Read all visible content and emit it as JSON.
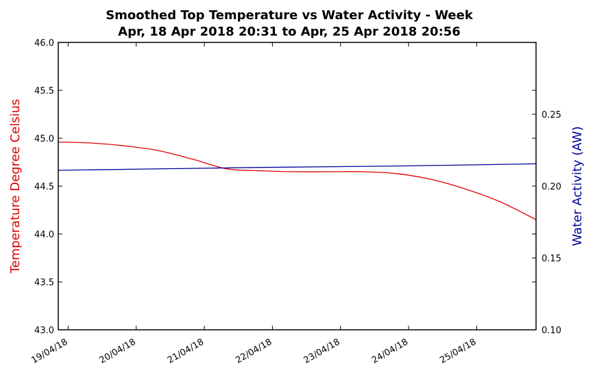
{
  "chart_data": {
    "type": "line",
    "title_line1": "Smoothed Top Temperature vs Water Activity - Week",
    "title_line2": "Apr, 18 Apr 2018 20:31 to Apr, 25 Apr 2018 20:56",
    "ylabel_left": "Temperature Degree Celsius",
    "ylabel_right": "Water Activity (AW)",
    "colors": {
      "temperature": "#dd0000",
      "water_activity": "#000099"
    },
    "ylim_left": [
      43.0,
      46.0
    ],
    "ylim_right": [
      0.1,
      0.3
    ],
    "xlim": [
      "2018-04-18 20:31",
      "2018-04-25 20:56"
    ],
    "yticks_left": [
      "43.0",
      "43.5",
      "44.0",
      "44.5",
      "45.0",
      "45.5",
      "46.0"
    ],
    "yticks_right": [
      "0.10",
      "0.15",
      "0.20",
      "0.25"
    ],
    "xticks": [
      {
        "date": "2018-04-19",
        "label": "19/04/18"
      },
      {
        "date": "2018-04-20",
        "label": "20/04/18"
      },
      {
        "date": "2018-04-21",
        "label": "21/04/18"
      },
      {
        "date": "2018-04-22",
        "label": "22/04/18"
      },
      {
        "date": "2018-04-23",
        "label": "23/04/18"
      },
      {
        "date": "2018-04-24",
        "label": "24/04/18"
      },
      {
        "date": "2018-04-25",
        "label": "25/04/18"
      }
    ],
    "series": [
      {
        "axis": "left",
        "x": [
          "2018-04-18 20:31",
          "2018-04-19 08:00",
          "2018-04-19 20:00",
          "2018-04-20 08:00",
          "2018-04-20 20:00",
          "2018-04-21 08:00",
          "2018-04-21 20:00",
          "2018-04-22 08:00",
          "2018-04-22 20:00",
          "2018-04-23 08:00",
          "2018-04-23 20:00",
          "2018-04-24 08:00",
          "2018-04-24 20:00",
          "2018-04-25 08:00",
          "2018-04-25 20:56"
        ],
        "values": [
          44.96,
          44.95,
          44.92,
          44.87,
          44.78,
          44.68,
          44.66,
          44.65,
          44.65,
          44.65,
          44.63,
          44.57,
          44.47,
          44.34,
          44.15
        ]
      },
      {
        "axis": "right",
        "x": [
          "2018-04-18 20:31",
          "2018-04-21 20:00",
          "2018-04-23 20:00",
          "2018-04-25 20:56"
        ],
        "values": [
          0.211,
          0.213,
          0.214,
          0.2155
        ]
      }
    ]
  }
}
